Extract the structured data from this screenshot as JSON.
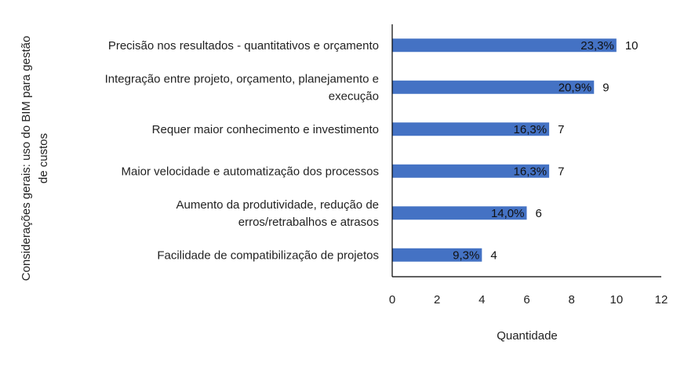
{
  "chart_data": {
    "type": "bar",
    "orientation": "horizontal",
    "categories": [
      [
        "Precisão nos resultados - quantitativos e orçamento"
      ],
      [
        "Integração entre projeto, orçamento, planejamento e",
        "execução"
      ],
      [
        "Requer maior conhecimento e investimento"
      ],
      [
        "Maior velocidade e automatização dos processos"
      ],
      [
        "Aumento da produtividade, redução de",
        "erros/retrabalhos e atrasos"
      ],
      [
        "Facilidade de compatibilização de projetos"
      ]
    ],
    "values": [
      10,
      9,
      7,
      7,
      6,
      4
    ],
    "percent_labels": [
      "23,3%",
      "20,9%",
      "16,3%",
      "16,3%",
      "14,0%",
      "9,3%"
    ],
    "value_labels": [
      "10",
      "9",
      "7",
      "7",
      "6",
      "4"
    ],
    "xlabel": "Quantidade",
    "ylabel": [
      "Considerações gerais: uso do BIM para gestão",
      "de custos"
    ],
    "xlim": [
      0,
      12
    ],
    "xticks": [
      "0",
      "2",
      "4",
      "6",
      "8",
      "10",
      "12"
    ],
    "grid": false,
    "legend": "none",
    "bar_color": "#4472C4"
  }
}
